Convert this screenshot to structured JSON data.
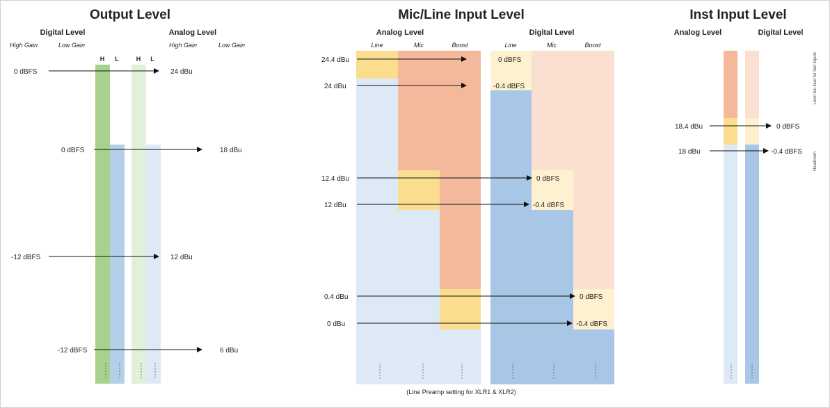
{
  "output": {
    "title": "Output Level",
    "digital_heading": "Digital Level",
    "analog_heading": "Analog Level",
    "digital_high": "High Gain",
    "digital_low": "Low Gain",
    "analog_high": "High Gain",
    "analog_low": "Low Gain",
    "bar_labels": [
      "H",
      "L",
      "H",
      "L"
    ],
    "levels": [
      {
        "digital": "0 dBFS",
        "analog": "24 dBu"
      },
      {
        "digital": "0 dBFS",
        "analog": "18 dBu"
      },
      {
        "digital": "-12 dBFS",
        "analog": "12 dBu"
      },
      {
        "digital": "-12 dBFS",
        "analog": "6 dBu"
      }
    ]
  },
  "micline": {
    "title": "Mic/Line Input Level",
    "analog_heading": "Analog Level",
    "digital_heading": "Digital Level",
    "analog_cols": [
      "Line",
      "Mic",
      "Boost"
    ],
    "digital_cols": [
      "Line",
      "Mic",
      "Boost"
    ],
    "levels": [
      {
        "analog": "24.4 dBu",
        "digital": "0 dBFS"
      },
      {
        "analog": "24 dBu",
        "digital": "-0.4 dBFS"
      },
      {
        "analog": "12.4 dBu",
        "digital": "0 dBFS"
      },
      {
        "analog": "12 dBu",
        "digital": "-0.4 dBFS"
      },
      {
        "analog": "0.4 dBu",
        "digital": "0 dBFS"
      },
      {
        "analog": "0 dBu",
        "digital": "-0.4 dBFS"
      }
    ],
    "footnote": "(Line Preamp setting for XLR1 & XLR2)"
  },
  "inst": {
    "title": "Inst Input Level",
    "analog_heading": "Analog Level",
    "digital_heading": "Digital Level",
    "levels": [
      {
        "analog": "18.4 dBu",
        "digital": "0 dBFS"
      },
      {
        "analog": "18 dBu",
        "digital": "-0.4 dBFS"
      }
    ],
    "side_top": "Level too loud for Inst Inputs",
    "side_bottom": "Headroom"
  },
  "colors": {
    "green": "#a9d18e",
    "green_light": "#e2efda",
    "blue_light": "#dde9f5",
    "blue": "#b4cfea",
    "blue_mid": "#a8c6e6",
    "orange": "#f4b99a",
    "orange_light": "#fbe0d2",
    "yellow": "#fbdd90",
    "yellow_light": "#fef1cf"
  }
}
